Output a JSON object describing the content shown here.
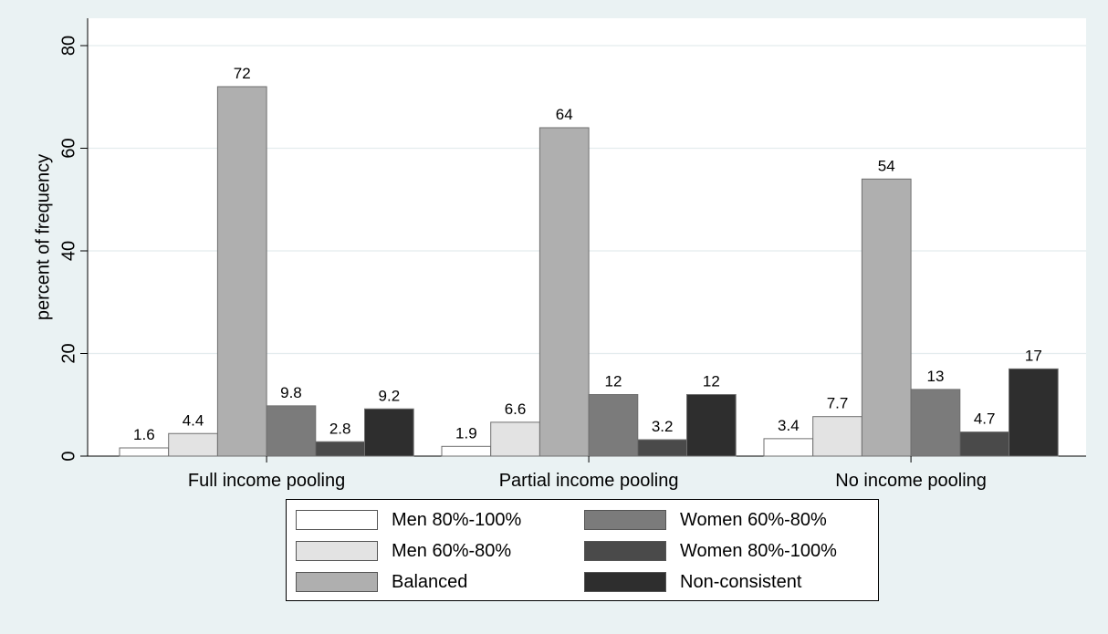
{
  "chart_data": {
    "type": "bar",
    "categories": [
      "Full income pooling",
      "Partial income pooling",
      "No income pooling"
    ],
    "series": [
      {
        "name": "Men 80%-100%",
        "color": "#ffffff",
        "values": [
          1.6,
          1.9,
          3.4
        ],
        "labels": [
          "1.6",
          "1.9",
          "3.4"
        ]
      },
      {
        "name": "Men 60%-80%",
        "color": "#e3e3e3",
        "values": [
          4.4,
          6.6,
          7.7
        ],
        "labels": [
          "4.4",
          "6.6",
          "7.7"
        ]
      },
      {
        "name": "Balanced",
        "color": "#afafaf",
        "values": [
          72,
          64,
          54
        ],
        "labels": [
          "72",
          "64",
          "54"
        ]
      },
      {
        "name": "Women 60%-80%",
        "color": "#7b7b7b",
        "values": [
          9.8,
          12,
          13
        ],
        "labels": [
          "9.8",
          "12",
          "13"
        ]
      },
      {
        "name": "Women 80%-100%",
        "color": "#4a4a4a",
        "values": [
          2.8,
          3.2,
          4.7
        ],
        "labels": [
          "2.8",
          "3.2",
          "4.7"
        ]
      },
      {
        "name": "Non-consistent",
        "color": "#2e2e2e",
        "values": [
          9.2,
          12,
          17
        ],
        "labels": [
          "9.2",
          "12",
          "17"
        ]
      }
    ],
    "title": "",
    "xlabel": "",
    "ylabel": "percent of frequency",
    "ylim": [
      0,
      80
    ],
    "yticks": [
      0,
      20,
      40,
      60,
      80
    ],
    "grid": true,
    "legend_position": "bottom",
    "plot_background": "#ffffff",
    "page_background": "#eaf2f3"
  }
}
